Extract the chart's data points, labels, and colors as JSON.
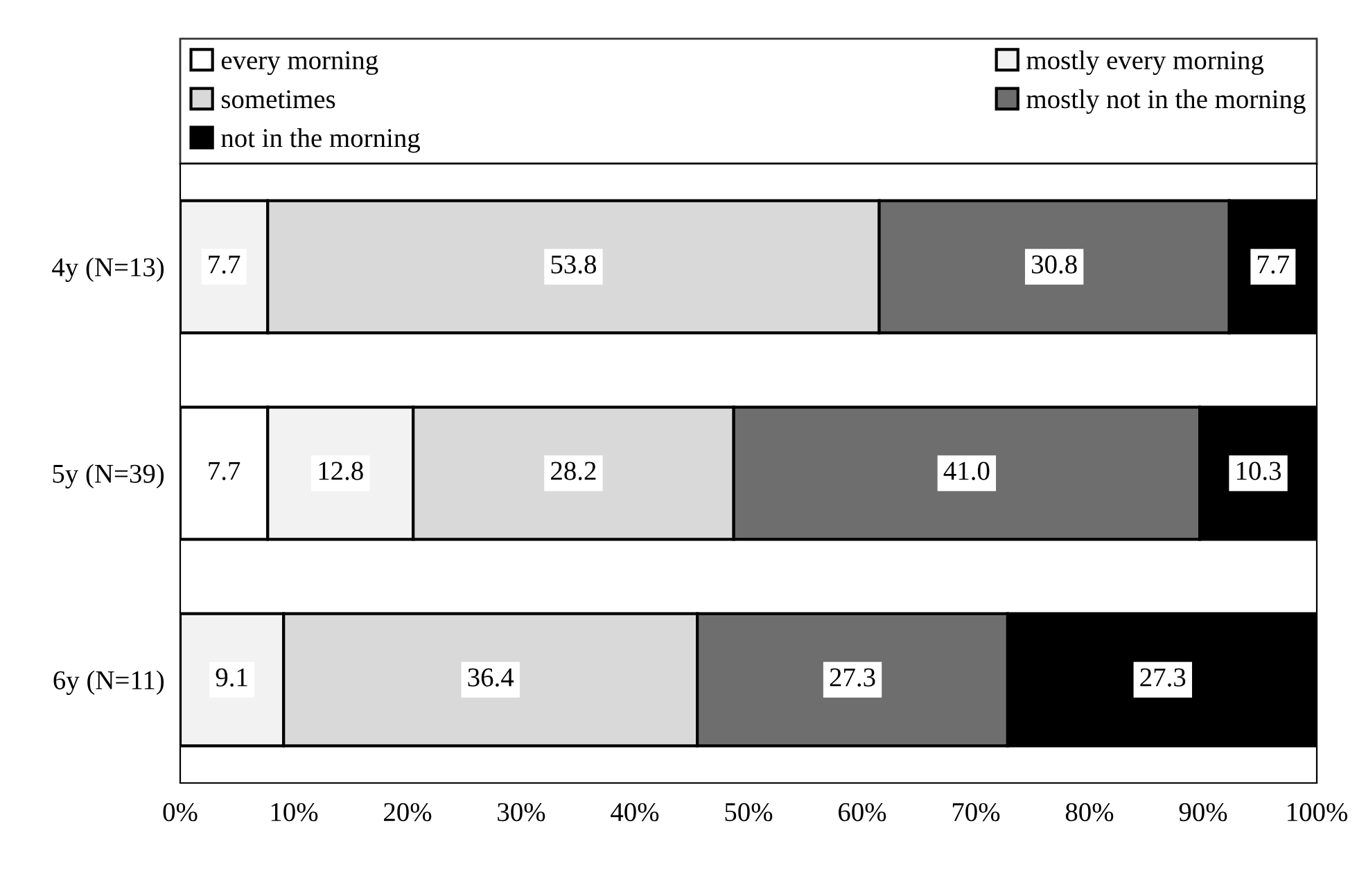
{
  "chart_data": {
    "type": "bar",
    "orientation": "horizontal",
    "stacked": true,
    "categories": [
      "4y (N=13)",
      "5y (N=39)",
      "6y (N=11)"
    ],
    "series": [
      {
        "name": "every morning",
        "color": "#ffffff",
        "values": [
          0,
          7.7,
          0
        ],
        "value_labels": [
          null,
          "7.7",
          null
        ]
      },
      {
        "name": "mostly every morning",
        "color": "#f2f2f2",
        "values": [
          7.7,
          12.8,
          9.1
        ],
        "value_labels": [
          "7.7",
          "12.8",
          "9.1"
        ]
      },
      {
        "name": "sometimes",
        "color": "#d9d9d9",
        "values": [
          53.8,
          28.2,
          36.4
        ],
        "value_labels": [
          "53.8",
          "28.2",
          "36.4"
        ]
      },
      {
        "name": "mostly not in the morning",
        "color": "#6e6e6e",
        "values": [
          30.8,
          41.0,
          27.3
        ],
        "value_labels": [
          "30.8",
          "41.0",
          "27.3"
        ]
      },
      {
        "name": "not in the morning",
        "color": "#000000",
        "values": [
          7.7,
          10.3,
          27.3
        ],
        "value_labels": [
          "7.7",
          "10.3",
          "27.3"
        ]
      }
    ],
    "xlim": [
      0,
      100
    ],
    "xticks": [
      {
        "value": 0,
        "label": "0%"
      },
      {
        "value": 10,
        "label": "10%"
      },
      {
        "value": 20,
        "label": "20%"
      },
      {
        "value": 30,
        "label": "30%"
      },
      {
        "value": 40,
        "label": "40%"
      },
      {
        "value": 50,
        "label": "50%"
      },
      {
        "value": 60,
        "label": "60%"
      },
      {
        "value": 70,
        "label": "70%"
      },
      {
        "value": 80,
        "label": "80%"
      },
      {
        "value": 90,
        "label": "90%"
      },
      {
        "value": 100,
        "label": "100%"
      }
    ],
    "legend": "top",
    "grid": false
  }
}
